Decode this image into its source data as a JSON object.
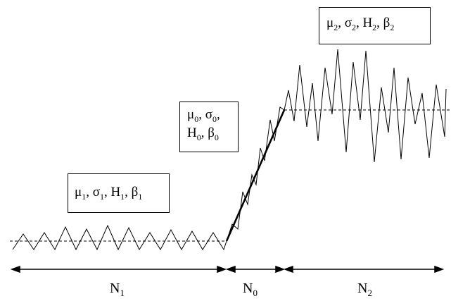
{
  "regime_1": {
    "params": [
      "μ",
      "1",
      ", σ",
      "1",
      ", H",
      "1",
      ", β",
      "1"
    ],
    "segment": [
      "N",
      "1"
    ]
  },
  "transition": {
    "params_line1": [
      "μ",
      "0",
      ", σ",
      "0",
      ","
    ],
    "params_line2": [
      "H",
      "0",
      ", β",
      "0"
    ],
    "segment": [
      "N",
      "0"
    ]
  },
  "regime_2": {
    "params": [
      "μ",
      "2",
      ", σ",
      "2",
      ", H",
      "2",
      ", β",
      "2"
    ],
    "segment": [
      "N",
      "2"
    ]
  },
  "colors": {
    "line": "#000000",
    "background": "#ffffff"
  }
}
